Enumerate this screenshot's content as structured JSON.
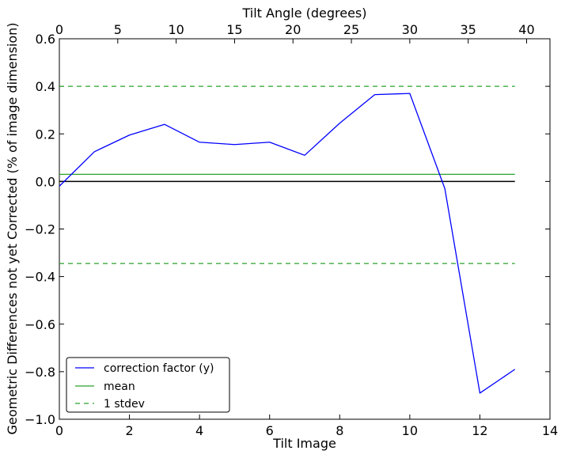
{
  "chart_data": {
    "type": "line",
    "xlabel": "Tilt Image",
    "ylabel": "Geometric Differences not yet Corrected (% of image dimension)",
    "x2label": "Tilt Angle (degrees)",
    "xlim": [
      0,
      14
    ],
    "ylim": [
      -1.0,
      0.6
    ],
    "x2lim": [
      0,
      42
    ],
    "xticks": [
      0,
      2,
      4,
      6,
      8,
      10,
      12,
      14
    ],
    "yticks": [
      -1.0,
      -0.8,
      -0.6,
      -0.4,
      -0.2,
      0.0,
      0.2,
      0.4,
      0.6
    ],
    "x2ticks": [
      0,
      5,
      10,
      15,
      20,
      25,
      30,
      35,
      40
    ],
    "xtick_labels": [
      "0",
      "2",
      "4",
      "6",
      "8",
      "10",
      "12",
      "14"
    ],
    "ytick_labels": [
      "−1.0",
      "−0.8",
      "−0.6",
      "−0.4",
      "−0.2",
      "0.0",
      "0.2",
      "0.4",
      "0.6"
    ],
    "x2tick_labels": [
      "0",
      "5",
      "10",
      "15",
      "20",
      "25",
      "30",
      "35",
      "40"
    ],
    "grid": false,
    "legend_position": "bottom-left",
    "series": [
      {
        "name": "correction factor (y)",
        "color": "#0000ff",
        "style": "solid",
        "x": [
          0,
          1,
          2,
          3,
          4,
          5,
          6,
          7,
          8,
          9,
          10,
          11,
          12,
          13
        ],
        "y": [
          -0.02,
          0.125,
          0.195,
          0.24,
          0.165,
          0.155,
          0.165,
          0.11,
          0.245,
          0.365,
          0.37,
          -0.03,
          -0.89,
          -0.79
        ]
      },
      {
        "name": "mean",
        "color": "#2ca02c",
        "style": "solid",
        "x": [
          0,
          13
        ],
        "y": [
          0.03,
          0.03
        ]
      },
      {
        "name": "1 stdev",
        "color": "#2ca02c",
        "style": "dashed",
        "x": [
          0,
          13
        ],
        "y": [
          0.4,
          0.4
        ]
      },
      {
        "name": "",
        "color": "#2ca02c",
        "style": "dashed",
        "x": [
          0,
          13
        ],
        "y": [
          -0.345,
          -0.345
        ]
      }
    ],
    "reference_line": {
      "color": "#000000",
      "x": [
        0,
        13
      ],
      "y": [
        0.0,
        0.0
      ]
    }
  }
}
